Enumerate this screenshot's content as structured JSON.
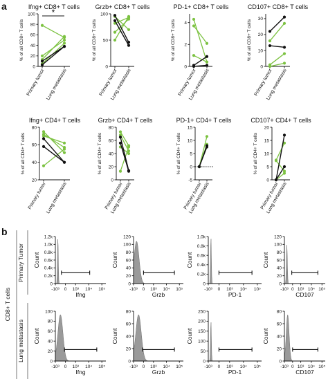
{
  "panel_letters": {
    "a": "a",
    "b": "b"
  },
  "significance": {
    "label": "*"
  },
  "colors": {
    "green": "#7cc241",
    "black": "#111111",
    "histogram": "#9a9a9a"
  },
  "row_labels": {
    "cells": "CD8+ T cells",
    "primary": "Primary Tumor",
    "lung": "Lung metastasis"
  },
  "chart_data": [
    {
      "type": "line",
      "title": "Ifng+ CD8+ T cells",
      "xlabel": "",
      "ylabel": "% of all CD8+ T cells",
      "categories": [
        "Primary tumor",
        "Lung metastasis"
      ],
      "ylim": [
        0,
        100
      ],
      "yticks": [
        0,
        20,
        40,
        60,
        80,
        100
      ],
      "zero_dotted": false,
      "significance": "*",
      "series": [
        {
          "color": "green",
          "values": [
            78,
            55
          ]
        },
        {
          "color": "green",
          "values": [
            20,
            50
          ]
        },
        {
          "color": "green",
          "values": [
            13,
            57
          ]
        },
        {
          "color": "green",
          "values": [
            5,
            44
          ]
        },
        {
          "color": "black",
          "values": [
            10,
            38
          ]
        },
        {
          "color": "black",
          "values": [
            3,
            38
          ]
        }
      ]
    },
    {
      "type": "line",
      "title": "Grzb+ CD8+ T cells",
      "xlabel": "",
      "ylabel": "% of all CD8+ T cells",
      "categories": [
        "Primary tumor",
        "Lung metastasis"
      ],
      "ylim": [
        0,
        100
      ],
      "yticks": [
        0,
        50,
        100
      ],
      "zero_dotted": false,
      "series": [
        {
          "color": "green",
          "values": [
            95,
            70
          ]
        },
        {
          "color": "green",
          "values": [
            82,
            93
          ]
        },
        {
          "color": "green",
          "values": [
            65,
            90
          ]
        },
        {
          "color": "green",
          "values": [
            50,
            95
          ]
        },
        {
          "color": "black",
          "values": [
            97,
            46
          ]
        },
        {
          "color": "black",
          "values": [
            87,
            40
          ]
        }
      ]
    },
    {
      "type": "line",
      "title": "PD-1+ CD8+ T cells",
      "xlabel": "",
      "ylabel": "% of all CD8+ T cells",
      "categories": [
        "Primary tumor",
        "Lung metastasis"
      ],
      "ylim": [
        0,
        4.8
      ],
      "yticks": [
        0,
        2,
        4
      ],
      "zero_dotted": false,
      "series": [
        {
          "color": "green",
          "values": [
            4.3,
            0.4
          ]
        },
        {
          "color": "green",
          "values": [
            3.7,
            2.1
          ]
        },
        {
          "color": "green",
          "values": [
            1.0,
            0.4
          ]
        },
        {
          "color": "black",
          "values": [
            0.1,
            0.9
          ]
        },
        {
          "color": "black",
          "values": [
            0.0,
            0.1
          ]
        }
      ]
    },
    {
      "type": "line",
      "title": "CD107+ CD8+ T cells",
      "xlabel": "",
      "ylabel": "% of all CD8+ T cells",
      "categories": [
        "Primary tumor",
        "Lung metastasis"
      ],
      "ylim": [
        0,
        33
      ],
      "yticks": [
        0,
        10,
        20,
        30
      ],
      "zero_dotted": false,
      "series": [
        {
          "color": "green",
          "values": [
            16,
            27
          ]
        },
        {
          "color": "green",
          "values": [
            1,
            8
          ]
        },
        {
          "color": "green",
          "values": [
            0,
            2
          ]
        },
        {
          "color": "black",
          "values": [
            22,
            31
          ]
        },
        {
          "color": "black",
          "values": [
            13,
            12
          ]
        }
      ]
    },
    {
      "type": "line",
      "title": "Ifng+ CD4+ T cells",
      "xlabel": "",
      "ylabel": "% of all CD4+ T cells",
      "categories": [
        "Primary tumor",
        "Lung metastasis"
      ],
      "ylim": [
        20,
        80
      ],
      "yticks": [
        20,
        40,
        60,
        80
      ],
      "zero_dotted": false,
      "series": [
        {
          "color": "green",
          "values": [
            75,
            51
          ]
        },
        {
          "color": "green",
          "values": [
            72,
            57
          ]
        },
        {
          "color": "green",
          "values": [
            70,
            62
          ]
        },
        {
          "color": "green",
          "values": [
            36,
            55
          ]
        },
        {
          "color": "black",
          "values": [
            67,
            40
          ]
        },
        {
          "color": "black",
          "values": [
            58,
            40
          ]
        }
      ]
    },
    {
      "type": "line",
      "title": "Grzb+ CD4+ T cells",
      "xlabel": "",
      "ylabel": "% of all CD4+ T cells",
      "categories": [
        "Primary tumor",
        "Lung metastasis"
      ],
      "ylim": [
        0,
        80
      ],
      "yticks": [
        0,
        20,
        40,
        60,
        80
      ],
      "zero_dotted": false,
      "series": [
        {
          "color": "green",
          "values": [
            73,
            52
          ]
        },
        {
          "color": "green",
          "values": [
            68,
            44
          ]
        },
        {
          "color": "green",
          "values": [
            50,
            40
          ]
        },
        {
          "color": "green",
          "values": [
            13,
            50
          ]
        },
        {
          "color": "black",
          "values": [
            65,
            14
          ]
        },
        {
          "color": "black",
          "values": [
            56,
            13
          ]
        }
      ]
    },
    {
      "type": "line",
      "title": "PD-1+ CD4+ T cells",
      "xlabel": "",
      "ylabel": "% of all CD4+ T cells",
      "categories": [
        "Primary tumor",
        "Lung metastasis"
      ],
      "ylim": [
        -5,
        15
      ],
      "yticks": [
        -5,
        0,
        5,
        10,
        15
      ],
      "zero_dotted": true,
      "series": [
        {
          "color": "green",
          "values": [
            0,
            11.5
          ]
        },
        {
          "color": "green",
          "values": [
            0,
            8.5
          ]
        },
        {
          "color": "black",
          "values": [
            0,
            8
          ]
        },
        {
          "color": "black",
          "values": [
            0,
            7.5
          ]
        }
      ]
    },
    {
      "type": "line",
      "title": "CD107+ CD4+ T cells",
      "xlabel": "",
      "ylabel": "% of all CD4+ T cells",
      "categories": [
        "Primary tumor",
        "Lung metastasis"
      ],
      "ylim": [
        0,
        20
      ],
      "yticks": [
        0,
        5,
        10,
        15,
        20
      ],
      "zero_dotted": false,
      "series": [
        {
          "color": "green",
          "values": [
            7.5,
            14
          ]
        },
        {
          "color": "green",
          "values": [
            7.3,
            3.3
          ]
        },
        {
          "color": "green",
          "values": [
            0,
            2.5
          ]
        },
        {
          "color": "black",
          "values": [
            0,
            17
          ]
        },
        {
          "color": "black",
          "values": [
            0,
            5
          ]
        }
      ]
    },
    {
      "type": "area",
      "title": "",
      "xlabel": "Ifng",
      "ylabel": "Count",
      "xticks": [
        "-10³",
        "0",
        "10³",
        "10⁴",
        "10⁵"
      ],
      "yticks": [
        "0",
        "0.2k",
        "0.4k",
        "0.6k",
        "0.8k",
        "1.0k",
        "1.2k"
      ],
      "ylim": [
        0,
        1.2
      ],
      "peak_position": 0.05,
      "peak_height": 0.97,
      "peak_width": 0.006,
      "gate": [
        0.12,
        0.68
      ]
    },
    {
      "type": "area",
      "title": "",
      "xlabel": "Grzb",
      "ylabel": "Count",
      "xticks": [
        "-10³",
        "0",
        "10³",
        "10⁴",
        "10⁵"
      ],
      "yticks": [
        "0",
        "20",
        "40",
        "60",
        "80",
        "100",
        "120"
      ],
      "ylim": [
        0,
        120
      ],
      "peak_position": 0.06,
      "peak_height": 0.9,
      "peak_width": 0.05,
      "gate": [
        0.2,
        0.82
      ]
    },
    {
      "type": "area",
      "title": "",
      "xlabel": "PD-1",
      "ylabel": "Count",
      "xticks": [
        "-10³",
        "0",
        "10³",
        "10⁴",
        "10⁵"
      ],
      "yticks": [
        "0",
        "0.2k",
        "0.4k",
        "0.6k",
        "0.8k",
        "1.0k"
      ],
      "ylim": [
        0,
        1.0
      ],
      "peak_position": 0.05,
      "peak_height": 0.98,
      "peak_width": 0.006,
      "gate": [
        0.2,
        0.82
      ]
    },
    {
      "type": "area",
      "title": "",
      "xlabel": "CD107",
      "ylabel": "Count",
      "xticks": [
        "-10³",
        "0",
        "10³",
        "10⁴",
        "10⁵"
      ],
      "yticks": [
        "0",
        "20",
        "40",
        "60",
        "80",
        "100",
        "120"
      ],
      "ylim": [
        0,
        120
      ],
      "peak_position": 0.06,
      "peak_height": 0.82,
      "peak_width": 0.012,
      "gate": [
        0.18,
        0.82
      ]
    },
    {
      "type": "area",
      "title": "",
      "xlabel": "Ifng",
      "ylabel": "Count",
      "xticks": [
        "-10³",
        "0",
        "10³",
        "10⁴",
        "10⁵"
      ],
      "yticks": [
        "0",
        "20",
        "40",
        "60",
        "80",
        "100"
      ],
      "ylim": [
        0,
        100
      ],
      "peak_position": 0.1,
      "peak_height": 0.93,
      "peak_width": 0.05,
      "gate": [
        0.18,
        0.82
      ]
    },
    {
      "type": "area",
      "title": "",
      "xlabel": "Grzb",
      "ylabel": "Count",
      "xticks": [
        "-10³",
        "0",
        "10³",
        "10⁴",
        "10⁵"
      ],
      "yticks": [
        "0",
        "20",
        "40",
        "60",
        "80"
      ],
      "ylim": [
        0,
        80
      ],
      "peak_position": 0.1,
      "peak_height": 0.93,
      "peak_width": 0.055,
      "gate": [
        0.18,
        0.82
      ]
    },
    {
      "type": "area",
      "title": "",
      "xlabel": "PD-1",
      "ylabel": "Count",
      "xticks": [
        "-10³",
        "0",
        "10³",
        "10⁴",
        "10⁵"
      ],
      "yticks": [
        "0",
        "50",
        "100",
        "150",
        "200",
        "250"
      ],
      "ylim": [
        0,
        250
      ],
      "peak_position": 0.05,
      "peak_height": 0.8,
      "peak_width": 0.006,
      "gate": [
        0.2,
        0.82
      ]
    },
    {
      "type": "area",
      "title": "",
      "xlabel": "CD107",
      "ylabel": "Count",
      "xticks": [
        "-10³",
        "0",
        "10³",
        "10⁴",
        "10⁵"
      ],
      "yticks": [
        "0",
        "20",
        "40",
        "60",
        "80"
      ],
      "ylim": [
        0,
        80
      ],
      "peak_position": 0.08,
      "peak_height": 0.93,
      "peak_width": 0.035,
      "gate": [
        0.2,
        0.82
      ]
    }
  ]
}
